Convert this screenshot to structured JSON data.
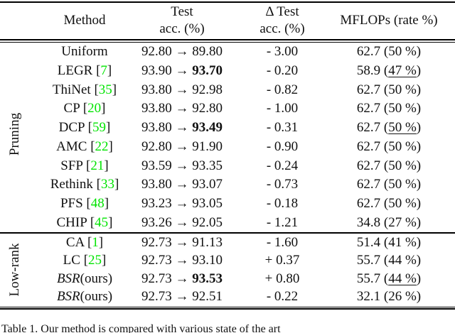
{
  "table": {
    "header": {
      "method": "Method",
      "test_line1": "Test",
      "test_line2": "acc. (%)",
      "delta_line1": "Δ Test",
      "delta_line2": "acc. (%)",
      "mflops": "MFLOPs (rate %)"
    },
    "groups": [
      {
        "label": "Pruning",
        "rows": [
          {
            "method": "Uniform",
            "cite": null,
            "italic": false,
            "suffix": null,
            "acc_before": "92.80",
            "acc_after": "89.80",
            "acc_after_bold": false,
            "delta": "- 3.00",
            "mflops": "62.7",
            "rate": "50 %",
            "rate_underlined": false
          },
          {
            "method": "LEGR",
            "cite": "7",
            "italic": false,
            "suffix": null,
            "acc_before": "93.90",
            "acc_after": "93.70",
            "acc_after_bold": true,
            "delta": "- 0.20",
            "mflops": "58.9",
            "rate": "47 %",
            "rate_underlined": true
          },
          {
            "method": "ThiNet",
            "cite": "35",
            "italic": false,
            "suffix": null,
            "acc_before": "93.80",
            "acc_after": "92.98",
            "acc_after_bold": false,
            "delta": "- 0.82",
            "mflops": "62.7",
            "rate": "50 %",
            "rate_underlined": false
          },
          {
            "method": "CP",
            "cite": "20",
            "italic": false,
            "suffix": null,
            "acc_before": "93.80",
            "acc_after": "92.80",
            "acc_after_bold": false,
            "delta": "- 1.00",
            "mflops": "62.7",
            "rate": "50 %",
            "rate_underlined": false
          },
          {
            "method": "DCP",
            "cite": "59",
            "italic": false,
            "suffix": null,
            "acc_before": "93.80",
            "acc_after": "93.49",
            "acc_after_bold": true,
            "delta": "- 0.31",
            "mflops": "62.7",
            "rate": "50 %",
            "rate_underlined": true
          },
          {
            "method": "AMC",
            "cite": "22",
            "italic": false,
            "suffix": null,
            "acc_before": "92.80",
            "acc_after": "91.90",
            "acc_after_bold": false,
            "delta": "- 0.90",
            "mflops": "62.7",
            "rate": "50 %",
            "rate_underlined": false
          },
          {
            "method": "SFP",
            "cite": "21",
            "italic": false,
            "suffix": null,
            "acc_before": "93.59",
            "acc_after": "93.35",
            "acc_after_bold": false,
            "delta": "- 0.24",
            "mflops": "62.7",
            "rate": "50 %",
            "rate_underlined": false
          },
          {
            "method": "Rethink",
            "cite": "33",
            "italic": false,
            "suffix": null,
            "acc_before": "93.80",
            "acc_after": "93.07",
            "acc_after_bold": false,
            "delta": "- 0.73",
            "mflops": "62.7",
            "rate": "50 %",
            "rate_underlined": false
          },
          {
            "method": "PFS",
            "cite": "48",
            "italic": false,
            "suffix": null,
            "acc_before": "93.23",
            "acc_after": "93.05",
            "acc_after_bold": false,
            "delta": "- 0.18",
            "mflops": "62.7",
            "rate": "50 %",
            "rate_underlined": false
          },
          {
            "method": "CHIP",
            "cite": "45",
            "italic": false,
            "suffix": null,
            "acc_before": "93.26",
            "acc_after": "92.05",
            "acc_after_bold": false,
            "delta": "- 1.21",
            "mflops": "34.8",
            "rate": "27 %",
            "rate_underlined": false
          }
        ]
      },
      {
        "label": "Low-rank",
        "rows": [
          {
            "method": "CA",
            "cite": "1",
            "italic": false,
            "suffix": null,
            "acc_before": "92.73",
            "acc_after": "91.13",
            "acc_after_bold": false,
            "delta": "- 1.60",
            "mflops": "51.4",
            "rate": "41 %",
            "rate_underlined": false
          },
          {
            "method": "LC",
            "cite": "25",
            "italic": false,
            "suffix": null,
            "acc_before": "92.73",
            "acc_after": "93.10",
            "acc_after_bold": false,
            "delta": "+ 0.37",
            "mflops": "55.7",
            "rate": "44 %",
            "rate_underlined": false
          },
          {
            "method": "BSR",
            "cite": null,
            "italic": true,
            "suffix": "(ours)",
            "acc_before": "92.73",
            "acc_after": "93.53",
            "acc_after_bold": true,
            "delta": "+ 0.80",
            "mflops": "55.7",
            "rate": "44 %",
            "rate_underlined": true
          },
          {
            "method": "BSR",
            "cite": null,
            "italic": true,
            "suffix": "(ours)",
            "acc_before": "92.73",
            "acc_after": "92.51",
            "acc_after_bold": false,
            "delta": "- 0.22",
            "mflops": "32.1",
            "rate": "26 %",
            "rate_underlined": false
          }
        ]
      }
    ],
    "arrow": "→"
  },
  "caption": "Table 1. Our method is compared with various state of the art",
  "colors": {
    "citation_green": "#00e400",
    "text": "#111111"
  }
}
